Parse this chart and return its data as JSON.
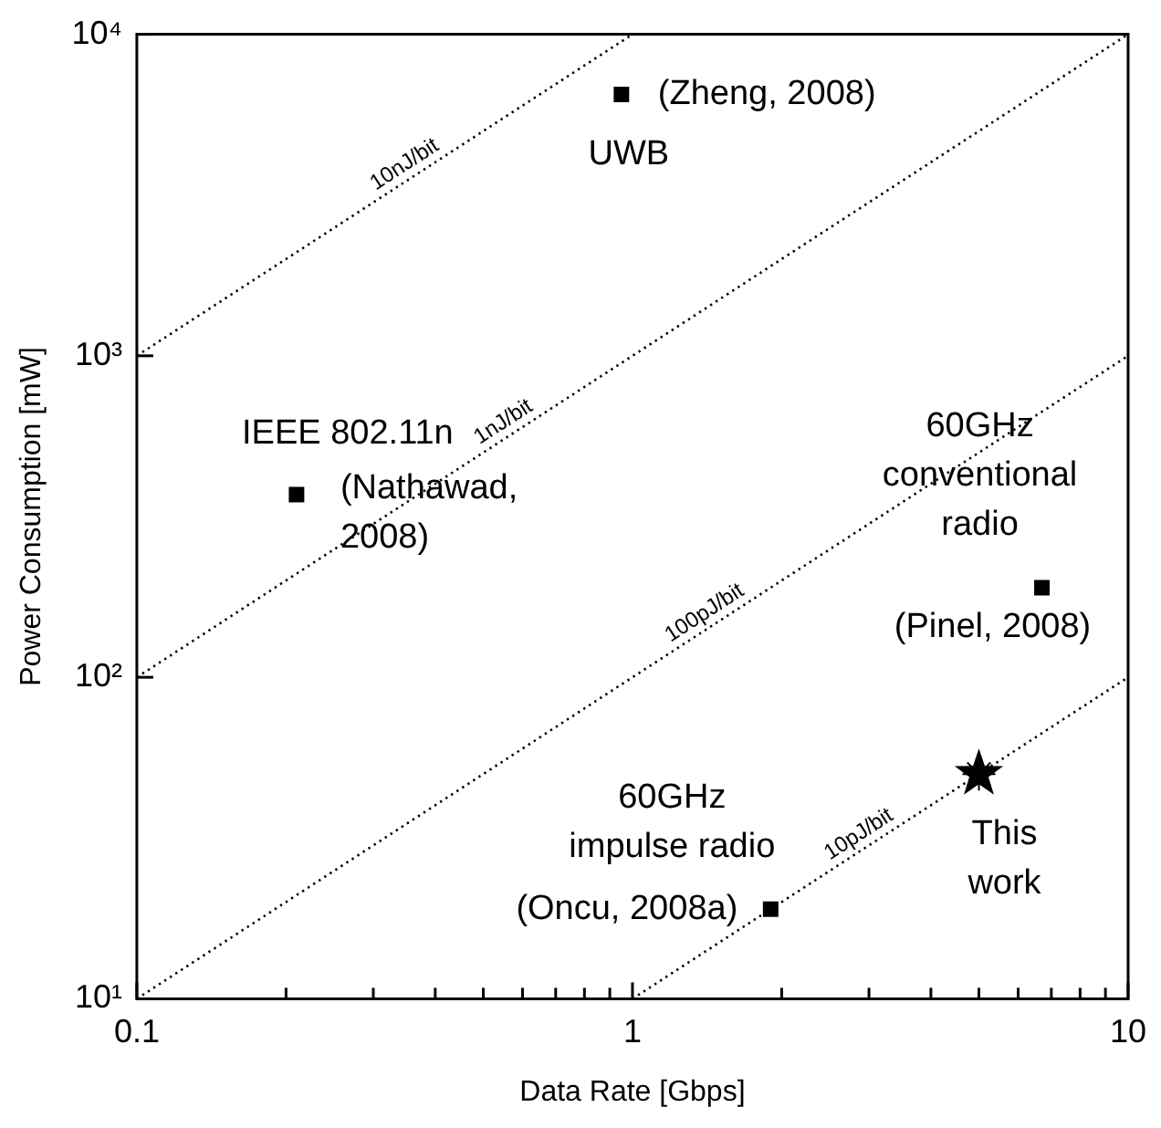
{
  "chart_data": {
    "type": "scatter",
    "xlabel": "Data Rate [Gbps]",
    "ylabel": "Power Consumption [mW]",
    "log": "xy",
    "grid": false,
    "legend": false,
    "xlim": [
      0.1,
      10
    ],
    "ylim": [
      10,
      10000
    ],
    "xticks": [
      0.1,
      {
        "value": 0.2,
        "label": null
      },
      {
        "value": 0.3,
        "label": null
      },
      {
        "value": 0.4,
        "label": null
      },
      {
        "value": 0.5,
        "label": null
      },
      {
        "value": 0.6,
        "label": null
      },
      {
        "value": 0.7,
        "label": null
      },
      {
        "value": 0.8,
        "label": null
      },
      {
        "value": 0.9,
        "label": null
      },
      1,
      {
        "value": 2,
        "label": null
      },
      {
        "value": 3,
        "label": null
      },
      {
        "value": 4,
        "label": null
      },
      {
        "value": 5,
        "label": null
      },
      {
        "value": 6,
        "label": null
      },
      {
        "value": 7,
        "label": null
      },
      {
        "value": 8,
        "label": null
      },
      {
        "value": 9,
        "label": null
      },
      10
    ],
    "yticks": [
      {
        "value": 10,
        "label": "10¹"
      },
      {
        "value": 100,
        "label": "10²"
      },
      {
        "value": 1000,
        "label": "10³"
      },
      {
        "value": 10000,
        "label": "10⁴"
      }
    ],
    "series": [
      {
        "type": "line",
        "line_style": "dotted",
        "marker": "none",
        "color": "#000000",
        "x": [
          0.1,
          1
        ],
        "values": [
          1000,
          10000
        ]
      },
      {
        "type": "line",
        "line_style": "dotted",
        "marker": "none",
        "color": "#000000",
        "x": [
          0.1,
          10
        ],
        "values": [
          100,
          10000
        ]
      },
      {
        "type": "line",
        "line_style": "dotted",
        "marker": "none",
        "color": "#000000",
        "x": [
          0.1,
          10
        ],
        "values": [
          10,
          1000
        ]
      },
      {
        "type": "line",
        "line_style": "dotted",
        "marker": "none",
        "color": "#000000",
        "x": [
          1,
          10
        ],
        "values": [
          10,
          100
        ]
      },
      {
        "marker": "square",
        "color": "#000000",
        "x": [
          0.95,
          0.21,
          6.7,
          1.9
        ],
        "values": [
          6500,
          370,
          190,
          19
        ]
      },
      {
        "marker": "star",
        "color": "#000000",
        "x": [
          5
        ],
        "values": [
          50
        ]
      }
    ],
    "annotations": [
      {
        "text": "10nJ/bit",
        "x": 0.36,
        "y": 3600
      },
      {
        "text": "1nJ/bit",
        "x": 0.57,
        "y": 570
      },
      {
        "text": "100pJ/bit",
        "x": 1.45,
        "y": 145
      },
      {
        "text": "10pJ/bit",
        "x": 2.97,
        "y": 29.7
      },
      {
        "text": "(Zheng, 2008)",
        "x": 0.95,
        "y": 6500
      },
      {
        "text": "UWB",
        "x": 0.95,
        "y": 6500
      },
      {
        "text": "IEEE 802.11n",
        "x": 0.21,
        "y": 370
      },
      {
        "text": "(Nathawad,\n2008)",
        "x": 0.21,
        "y": 370
      },
      {
        "text": "60GHz\nconventional\nradio",
        "x": 6.7,
        "y": 190
      },
      {
        "text": "(Pinel, 2008)",
        "x": 6.7,
        "y": 190
      },
      {
        "text": "60GHz\nimpulse radio",
        "x": 1.9,
        "y": 19
      },
      {
        "text": "(Oncu, 2008a)",
        "x": 1.9,
        "y": 19
      },
      {
        "text": "This\nwork",
        "x": 5,
        "y": 50
      }
    ]
  }
}
